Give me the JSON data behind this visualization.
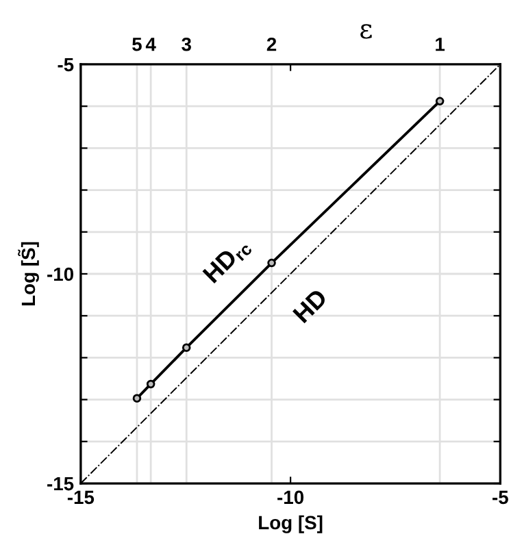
{
  "chart_data": {
    "type": "line",
    "xlabel": "Log [S]",
    "ylabel": "Log [S̃]",
    "xlim": [
      -15,
      -5
    ],
    "xticks": [
      -15,
      -10,
      -5
    ],
    "ylim": [
      -15,
      -5
    ],
    "yticks": [
      -15,
      {
        "value": -14,
        "label": null
      },
      {
        "value": -13,
        "label": null
      },
      {
        "value": -12,
        "label": null
      },
      {
        "value": -11,
        "label": null
      },
      -10,
      {
        "value": -9,
        "label": null
      },
      {
        "value": -8,
        "label": null
      },
      {
        "value": -7,
        "label": null
      },
      {
        "value": -6,
        "label": null
      },
      -5
    ],
    "grid": "y",
    "ref_lines": [
      {
        "axis": "x",
        "value": -13.66
      },
      {
        "axis": "x",
        "value": -13.33
      },
      {
        "axis": "x",
        "value": -12.48
      },
      {
        "axis": "x",
        "value": -10.45
      },
      {
        "axis": "x",
        "value": -6.44
      }
    ],
    "series": [
      {
        "color": "#000000",
        "x": [
          -13.66,
          -13.33,
          -12.48,
          -10.45,
          -6.44
        ],
        "values": [
          -12.97,
          -12.63,
          -11.76,
          -9.74,
          -5.88
        ],
        "marker": "circle",
        "line_style": "solid"
      },
      {
        "color": "#000000",
        "x": [
          -15,
          -5
        ],
        "values": [
          -15,
          -5
        ],
        "marker": "none",
        "line_style": "dashdot"
      }
    ],
    "annotations": [
      "ε",
      "HD$_{rc}$",
      "HD",
      "5",
      "4",
      "3",
      "2",
      "1"
    ]
  }
}
